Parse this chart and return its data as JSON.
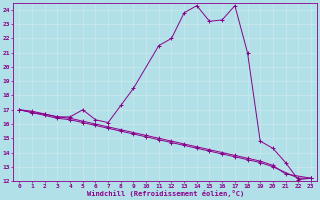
{
  "xlabel": "Windchill (Refroidissement éolien,°C)",
  "bg_color": "#b2e0e8",
  "line_color": "#8b008b",
  "grid_color": "#c8e8ec",
  "xlim": [
    -0.5,
    23.5
  ],
  "ylim": [
    12,
    24.5
  ],
  "xticks": [
    0,
    1,
    2,
    3,
    4,
    5,
    6,
    7,
    8,
    9,
    10,
    11,
    12,
    13,
    14,
    15,
    16,
    17,
    18,
    19,
    20,
    21,
    22,
    23
  ],
  "yticks": [
    12,
    13,
    14,
    15,
    16,
    17,
    18,
    19,
    20,
    21,
    22,
    23,
    24
  ],
  "series": [
    [
      17.0,
      16.8,
      16.7,
      16.5,
      16.5,
      17.0,
      16.3,
      16.1,
      17.3,
      18.5,
      21.5,
      22.0,
      23.8,
      24.3,
      23.2,
      23.3,
      24.3,
      21.0,
      14.8,
      14.3,
      13.3,
      12.1,
      12.2
    ],
    [
      17.0,
      16.8,
      16.6,
      16.4,
      16.3,
      16.1,
      15.9,
      15.7,
      15.5,
      15.3,
      15.1,
      14.9,
      14.7,
      14.5,
      14.3,
      14.1,
      13.9,
      13.7,
      13.5,
      13.3,
      13.0,
      12.2,
      12.2
    ],
    [
      17.0,
      16.9,
      16.7,
      16.5,
      16.4,
      16.2,
      16.0,
      15.8,
      15.6,
      15.4,
      15.2,
      15.0,
      14.8,
      14.6,
      14.4,
      14.2,
      14.0,
      13.8,
      13.6,
      13.4,
      13.1,
      12.5,
      12.2
    ]
  ],
  "series_x": [
    [
      0,
      1,
      2,
      3,
      4,
      5,
      6,
      7,
      8,
      9,
      11,
      12,
      13,
      14,
      15,
      16,
      17,
      18,
      19,
      20,
      21,
      22,
      23
    ],
    [
      0,
      1,
      2,
      3,
      4,
      5,
      6,
      7,
      8,
      9,
      10,
      11,
      12,
      13,
      14,
      15,
      16,
      17,
      18,
      19,
      20,
      22,
      23
    ],
    [
      0,
      1,
      2,
      3,
      4,
      5,
      6,
      7,
      8,
      9,
      10,
      11,
      12,
      13,
      14,
      15,
      16,
      17,
      18,
      19,
      20,
      21,
      23
    ]
  ]
}
